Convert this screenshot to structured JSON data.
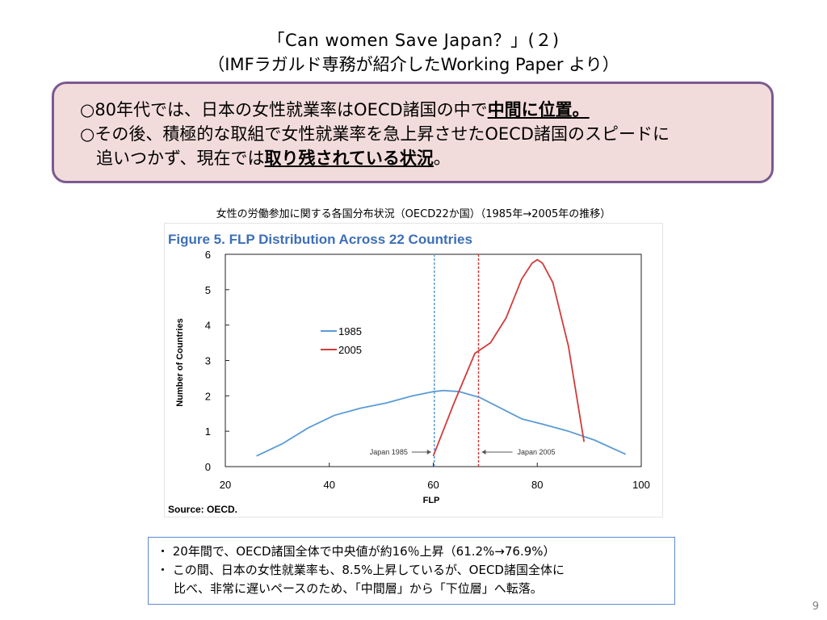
{
  "slide": {
    "title_line1": "「Can  women  Save  Japan？」(２)",
    "title_line2": "（IMFラガルド専務が紹介したWorking Paper より）",
    "page_number": "9"
  },
  "bullets": {
    "b1_prefix": "○80年代では、日本の女性就業率はOECD諸国の中で",
    "b1_emph": "中間に位置。",
    "b2": "○その後、積極的な取組で女性就業率を急上昇させたOECD諸国のスピードに",
    "b3_prefix": "追いつかず、現在では",
    "b3_emph": "取り残されている状況",
    "b3_suffix": "。"
  },
  "chart_caption": "女性の労働参加に関する各国分布状況（OECD22か国）（1985年→2005年の推移）",
  "notes": {
    "line1": "・  20年間で、OECD諸国全体で中央値が約16％上昇（61.2%→76.9%）",
    "line2": "・  この間、日本の女性就業率も、8.5%上昇しているが、OECD諸国全体に",
    "line3": "比べ、非常に遅いペースのため、「中間層」から「下位層」へ転落。"
  },
  "chart_data": {
    "type": "line",
    "title": "Figure 5. FLP Distribution Across 22 Countries",
    "xlabel": "FLP",
    "ylabel": "Number of Countries",
    "source": "Source: OECD.",
    "xlim": [
      20,
      100
    ],
    "ylim": [
      0,
      6
    ],
    "xticks": [
      20,
      40,
      60,
      80,
      100
    ],
    "yticks": [
      0,
      1,
      2,
      3,
      4,
      5,
      6
    ],
    "grid": false,
    "legend_position": "center-left",
    "series": [
      {
        "name": "1985",
        "color": "#5b9bd5",
        "x": [
          26,
          31,
          36,
          41,
          46,
          51,
          56,
          60,
          62,
          65,
          69,
          73,
          77,
          81,
          86,
          91,
          97
        ],
        "y": [
          0.3,
          0.65,
          1.1,
          1.45,
          1.65,
          1.8,
          2.0,
          2.12,
          2.15,
          2.12,
          1.95,
          1.65,
          1.35,
          1.2,
          1.0,
          0.75,
          0.35
        ]
      },
      {
        "name": "2005",
        "color": "#d23b3b",
        "x": [
          60,
          64,
          68,
          71,
          74,
          77,
          79,
          80,
          81,
          83,
          86,
          89
        ],
        "y": [
          0.3,
          1.8,
          3.2,
          3.5,
          4.2,
          5.3,
          5.75,
          5.85,
          5.75,
          5.2,
          3.4,
          0.7
        ]
      }
    ],
    "reference_lines": [
      {
        "label": "Japan 1985",
        "x": 60.2,
        "color": "#5b9bd5"
      },
      {
        "label": "Japan 2005",
        "x": 68.7,
        "color": "#d23b3b"
      }
    ]
  }
}
